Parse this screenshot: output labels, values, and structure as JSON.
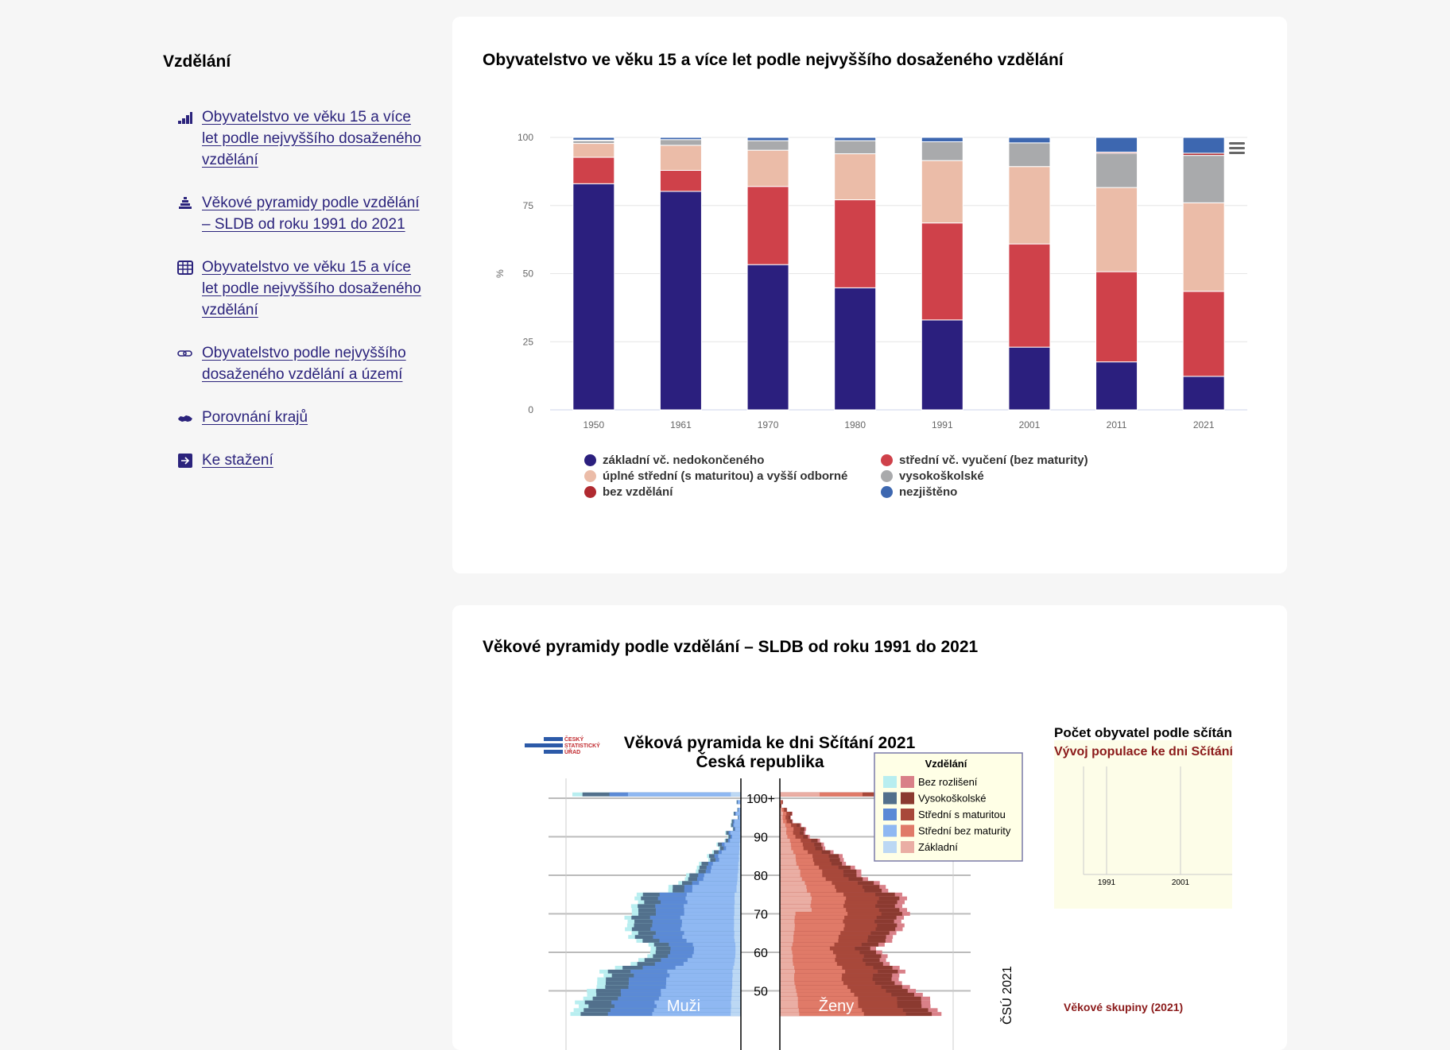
{
  "sidebar": {
    "heading": "Vzdělání",
    "items": [
      {
        "label": "Obyvatelstvo ve věku 15 a více let podle nejvyššího dosaženého vzdělání",
        "icon": "bar-chart-icon"
      },
      {
        "label": "Věkové pyramidy podle vzdělání – SLDB od roku 1991 do 2021",
        "icon": "pyramid-icon"
      },
      {
        "label": "Obyvatelstvo ve věku 15 a více let podle nejvyššího dosaženého vzdělání",
        "icon": "table-icon"
      },
      {
        "label": "Obyvatelstvo podle nejvyššího dosaženého vzdělání a území",
        "icon": "link-icon"
      },
      {
        "label": "Porovnání krajů",
        "icon": "map-icon"
      },
      {
        "label": "Ke stažení",
        "icon": "download-arrow-icon"
      }
    ]
  },
  "card1": {
    "title": "Obyvatelstvo ve věku 15 a více let podle nejvyššího dosaženého vzdělání"
  },
  "chart_data": {
    "type": "bar",
    "stacked": true,
    "ylabel": "%",
    "ylim": [
      0,
      100
    ],
    "yticks": [
      "0",
      "25",
      "50",
      "75",
      "100"
    ],
    "categories": [
      "1950",
      "1961",
      "1970",
      "1980",
      "1991",
      "2001",
      "2011",
      "2021"
    ],
    "series": [
      {
        "name": "základní vč. nedokončeného",
        "color": "#2b1f7e",
        "values": [
          83,
          80.2,
          53.3,
          44.8,
          33,
          23,
          17.6,
          12.3
        ]
      },
      {
        "name": "střední vč. vyučení (bez maturity)",
        "color": "#cf414a",
        "values": [
          9.7,
          7.7,
          28.7,
          32.3,
          35.6,
          37.9,
          33.1,
          31.2
        ]
      },
      {
        "name": "úplné střední (s maturitou) a vyšší odborné",
        "color": "#ebbca8",
        "values": [
          5.1,
          9.2,
          13.3,
          16.9,
          22.9,
          28.4,
          30.9,
          32.5
        ]
      },
      {
        "name": "vysokoškolské",
        "color": "#a9aaac",
        "values": [
          1,
          2.1,
          3.5,
          4.8,
          6.9,
          8.7,
          12.6,
          17.4
        ]
      },
      {
        "name": "bez vzdělání",
        "color": "#b02a30",
        "values": [
          0.2,
          0,
          0,
          0,
          0,
          0,
          0.4,
          0.8
        ]
      },
      {
        "name": "nezjištěno",
        "color": "#3d67b0",
        "values": [
          1,
          0.8,
          1.2,
          1.2,
          1.6,
          2,
          5.4,
          5.8
        ]
      }
    ],
    "legend_placement": "bottom"
  },
  "card2": {
    "title": "Věkové pyramidy podle vzdělání – SLDB od roku 1991 do 2021",
    "pyramid": {
      "logo_text": "ČESKÝ STATISTICKÝ ÚŘAD",
      "title": "Věková pyramida ke dni Sčítání 2021",
      "subtitle": "Česká republika",
      "age_labels": [
        "100+",
        "90",
        "80",
        "70",
        "60",
        "50"
      ],
      "men_label": "Muži",
      "women_label": "Ženy",
      "copyright": "ČSÚ 2021",
      "legend_title": "Vzdělání",
      "legend": [
        "Bez rozlišení",
        "Vysokoškolské",
        "Střední s maturitou",
        "Střední bez maturity",
        "Základní"
      ]
    },
    "side": {
      "title": "Počet obyvatel podle sčítání",
      "subtitle": "Vývoj populace ke dni Sčítání",
      "ticks": [
        "1991",
        "2001"
      ],
      "bottom_label": "Věkové skupiny (2021)"
    }
  }
}
